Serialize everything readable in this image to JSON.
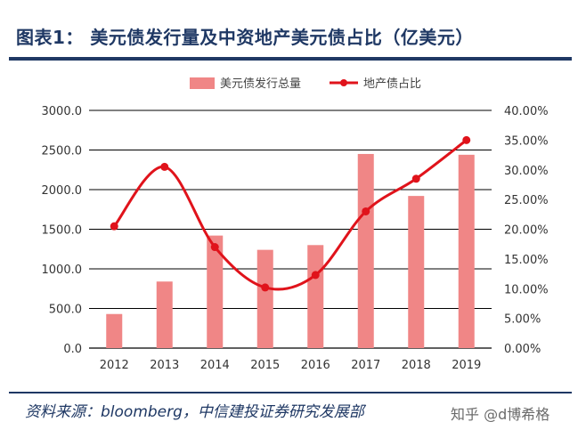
{
  "title": "图表1：  美元债发行量及中资地产美元债占比（亿美元）",
  "source": "资料来源：bloomberg，中信建投证券研究发展部",
  "watermark": "知乎 @d博希格",
  "colors": {
    "bar": "#f08686",
    "line": "#e0131b",
    "title": "#1f3864",
    "grid": "#000000"
  },
  "chart_data": {
    "type": "bar+line",
    "categories": [
      "2012",
      "2013",
      "2014",
      "2015",
      "2016",
      "2017",
      "2018",
      "2019"
    ],
    "series": [
      {
        "name": "美元债发行总量",
        "type": "bar",
        "axis": "left",
        "values": [
          430,
          840,
          1420,
          1240,
          1300,
          2450,
          1920,
          2440
        ]
      },
      {
        "name": "地产债占比",
        "type": "line",
        "axis": "right",
        "values": [
          20.5,
          30.5,
          17.0,
          10.2,
          12.3,
          23.0,
          28.5,
          35.0
        ]
      }
    ],
    "y_left": {
      "range": [
        0,
        3000
      ],
      "ticks": [
        "0.0",
        "500.0",
        "1000.0",
        "1500.0",
        "2000.0",
        "2500.0",
        "3000.0"
      ]
    },
    "y_right": {
      "range": [
        0,
        40
      ],
      "ticks": [
        "0.00%",
        "5.00%",
        "10.00%",
        "15.00%",
        "20.00%",
        "25.00%",
        "30.00%",
        "35.00%",
        "40.00%"
      ]
    },
    "gridlines": "horizontal",
    "legend": "top-center"
  }
}
